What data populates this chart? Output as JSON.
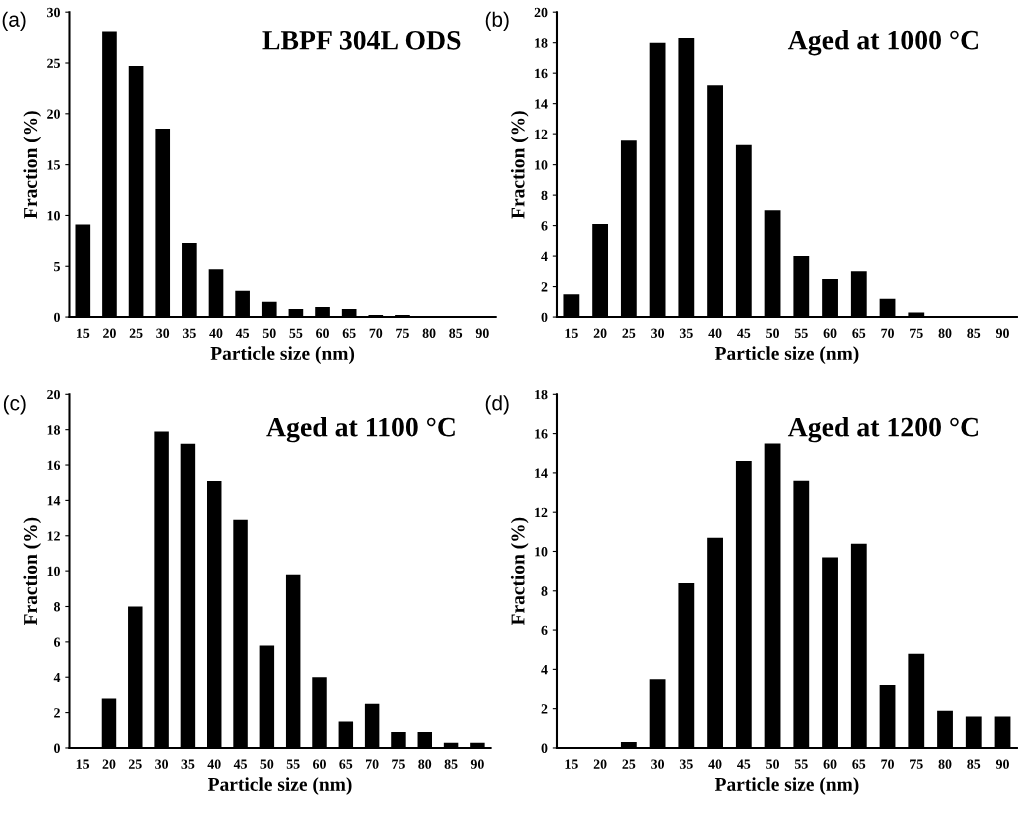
{
  "chart_data": [
    {
      "type": "bar",
      "title": "LBPF 304L ODS",
      "annotations": [
        "(a)"
      ],
      "xlabel": "Particle size (nm)",
      "ylabel": "Fraction (%)",
      "categories": [
        "15",
        "20",
        "25",
        "30",
        "35",
        "40",
        "45",
        "50",
        "55",
        "60",
        "65",
        "70",
        "75",
        "80",
        "85",
        "90"
      ],
      "values": [
        9.1,
        28.1,
        24.7,
        18.5,
        7.3,
        4.7,
        2.6,
        1.5,
        0.8,
        1.0,
        0.8,
        0.2,
        0.2,
        0,
        0,
        0
      ],
      "color": "#000000",
      "ylim": [
        0,
        30
      ],
      "yticks": [
        0,
        5,
        10,
        15,
        20,
        25,
        30
      ],
      "grid": false,
      "legend": false
    },
    {
      "type": "bar",
      "title": "Aged at 1000 °C",
      "annotations": [
        "(b)"
      ],
      "xlabel": "Particle size (nm)",
      "ylabel": "Fraction (%)",
      "categories": [
        "15",
        "20",
        "25",
        "30",
        "35",
        "40",
        "45",
        "50",
        "55",
        "60",
        "65",
        "70",
        "75",
        "80",
        "85",
        "90"
      ],
      "values": [
        1.5,
        6.1,
        11.6,
        18.0,
        18.3,
        15.2,
        11.3,
        7.0,
        4.0,
        2.5,
        3.0,
        1.2,
        0.3,
        0,
        0,
        0
      ],
      "color": "#000000",
      "ylim": [
        0,
        20
      ],
      "yticks": [
        0,
        2,
        4,
        6,
        8,
        10,
        12,
        14,
        16,
        18,
        20
      ],
      "grid": false,
      "legend": false
    },
    {
      "type": "bar",
      "title": "Aged at 1100 °C",
      "annotations": [
        "(c)"
      ],
      "xlabel": "Particle size (nm)",
      "ylabel": "Fraction (%)",
      "categories": [
        "15",
        "20",
        "25",
        "30",
        "35",
        "40",
        "45",
        "50",
        "55",
        "60",
        "65",
        "70",
        "75",
        "80",
        "85",
        "90"
      ],
      "values": [
        0,
        2.8,
        8.0,
        17.9,
        17.2,
        15.1,
        12.9,
        5.8,
        9.8,
        4.0,
        1.5,
        2.5,
        0.9,
        0.9,
        0.3,
        0.3
      ],
      "color": "#000000",
      "ylim": [
        0,
        20
      ],
      "yticks": [
        0,
        2,
        4,
        6,
        8,
        10,
        12,
        14,
        16,
        18,
        20
      ],
      "grid": false,
      "legend": false
    },
    {
      "type": "bar",
      "title": "Aged at 1200 °C",
      "annotations": [
        "(d)"
      ],
      "xlabel": "Particle size (nm)",
      "ylabel": "Fraction (%)",
      "categories": [
        "15",
        "20",
        "25",
        "30",
        "35",
        "40",
        "45",
        "50",
        "55",
        "60",
        "65",
        "70",
        "75",
        "80",
        "85",
        "90"
      ],
      "values": [
        0,
        0,
        0.3,
        3.5,
        8.4,
        10.7,
        14.6,
        15.5,
        13.6,
        9.7,
        10.4,
        3.2,
        4.8,
        1.9,
        1.6,
        1.6
      ],
      "color": "#000000",
      "ylim": [
        0,
        18
      ],
      "yticks": [
        0,
        2,
        4,
        6,
        8,
        10,
        12,
        14,
        16,
        18
      ],
      "grid": false,
      "legend": false
    }
  ]
}
